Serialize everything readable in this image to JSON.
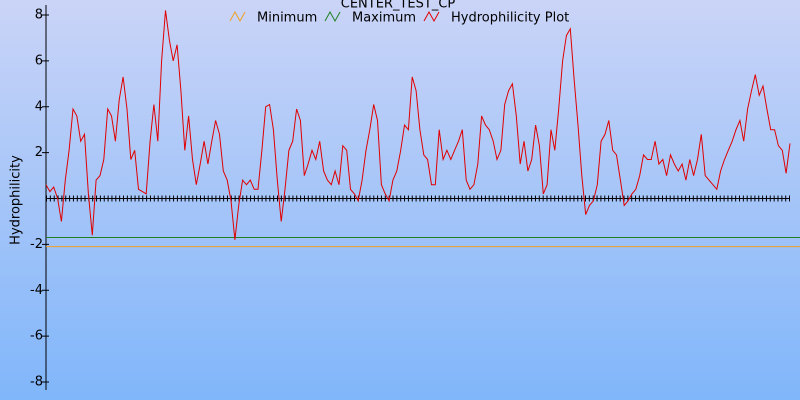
{
  "chart_data": {
    "type": "line",
    "title": "CENTER_TEST_CP",
    "y_label": "Hydrophilicity",
    "ylim": [
      -8,
      8
    ],
    "yticks": [
      -8,
      -6,
      -4,
      -2,
      2,
      4,
      6,
      8
    ],
    "series": [
      {
        "name": "Minimum",
        "color": "#f0a020",
        "value": -2.1
      },
      {
        "name": "Maximum",
        "color": "#208020",
        "value": -1.7
      },
      {
        "name": "Hydrophilicity Plot",
        "color": "#e00000",
        "values": [
          0.6,
          0.3,
          0.5,
          0.0,
          -1.0,
          0.8,
          2.1,
          3.9,
          3.6,
          2.5,
          2.8,
          0.2,
          -1.6,
          0.8,
          1.0,
          1.7,
          3.9,
          3.6,
          2.5,
          4.3,
          5.3,
          3.9,
          1.7,
          2.1,
          0.4,
          0.3,
          0.2,
          2.5,
          4.1,
          2.5,
          6.0,
          8.2,
          6.9,
          6.0,
          6.7,
          4.7,
          2.1,
          3.6,
          1.7,
          0.6,
          1.5,
          2.5,
          1.5,
          2.5,
          3.4,
          2.8,
          1.2,
          0.8,
          -0.1,
          -1.8,
          -0.3,
          0.8,
          0.6,
          0.8,
          0.4,
          0.4,
          2.1,
          4.0,
          4.1,
          3.0,
          0.8,
          -1.0,
          0.4,
          2.1,
          2.5,
          3.9,
          3.4,
          1.0,
          1.5,
          2.1,
          1.7,
          2.5,
          1.2,
          0.8,
          0.6,
          1.2,
          0.6,
          2.3,
          2.1,
          0.4,
          0.2,
          -0.1,
          0.8,
          2.1,
          3.0,
          4.1,
          3.4,
          0.6,
          0.2,
          -0.1,
          0.8,
          1.2,
          2.1,
          3.2,
          3.0,
          5.3,
          4.7,
          3.0,
          1.9,
          1.7,
          0.6,
          0.6,
          3.0,
          1.7,
          2.1,
          1.7,
          2.1,
          2.5,
          3.0,
          0.8,
          0.4,
          0.6,
          1.5,
          3.6,
          3.2,
          3.0,
          2.5,
          1.7,
          2.1,
          4.1,
          4.7,
          5.0,
          3.6,
          1.5,
          2.5,
          1.2,
          1.7,
          3.2,
          2.3,
          0.2,
          0.6,
          3.0,
          2.1,
          3.9,
          6.0,
          7.1,
          7.4,
          5.2,
          3.2,
          1.0,
          -0.7,
          -0.3,
          -0.1,
          0.6,
          2.5,
          2.8,
          3.4,
          2.1,
          1.9,
          0.8,
          -0.3,
          -0.1,
          0.2,
          0.4,
          1.0,
          1.9,
          1.7,
          1.7,
          2.5,
          1.5,
          1.7,
          1.0,
          1.9,
          1.5,
          1.2,
          1.5,
          0.8,
          1.7,
          1.0,
          1.7,
          2.8,
          1.0,
          0.8,
          0.6,
          0.4,
          1.2,
          1.7,
          2.1,
          2.5,
          3.0,
          3.4,
          2.5,
          3.9,
          4.7,
          5.4,
          4.5,
          4.9,
          3.9,
          3.0,
          3.0,
          2.3,
          2.1,
          1.1,
          2.4
        ]
      }
    ]
  }
}
